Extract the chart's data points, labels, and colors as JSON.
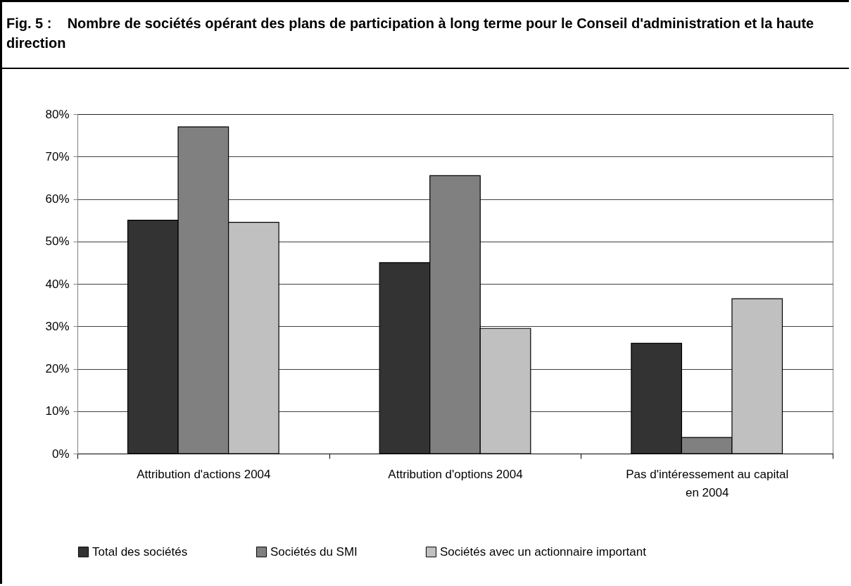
{
  "chart_data": {
    "type": "bar",
    "title": "Fig. 5 :    Nombre de sociétés opérant des plans de participation à long terme pour le Conseil d'administration et la haute direction",
    "categories": [
      "Attribution d'actions 2004",
      "Attribution d'options 2004",
      "Pas d'intéressement au capital en 2004"
    ],
    "series": [
      {
        "name": "Total des sociétés",
        "color": "#333333",
        "values": [
          55,
          45,
          26
        ]
      },
      {
        "name": "Sociétés du SMI",
        "color": "#808080",
        "values": [
          77,
          65.5,
          3.8
        ]
      },
      {
        "name": "Sociétés avec un actionnaire important",
        "color": "#c0c0c0",
        "values": [
          54.5,
          29.5,
          36.5
        ]
      }
    ],
    "ylim": [
      0,
      80
    ],
    "yticks": [
      {
        "value": 0,
        "label": "0%"
      },
      {
        "value": 10,
        "label": "10%"
      },
      {
        "value": 20,
        "label": "20%"
      },
      {
        "value": 30,
        "label": "30%"
      },
      {
        "value": 40,
        "label": "40%"
      },
      {
        "value": 50,
        "label": "50%"
      },
      {
        "value": 60,
        "label": "60%"
      },
      {
        "value": 70,
        "label": "70%"
      },
      {
        "value": 80,
        "label": "80%"
      }
    ],
    "grid": true,
    "legend": "bottom"
  }
}
